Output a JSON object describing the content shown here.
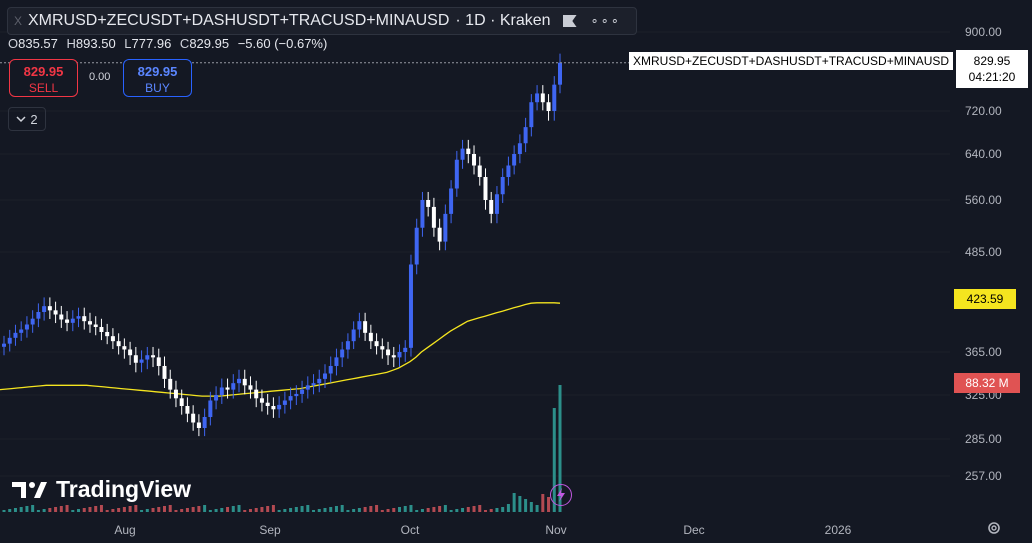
{
  "header": {
    "close_glyph": "X",
    "symbol": "XMRUSD+ZECUSDT+DASHUSDT+TRACUSD+MINAUSD",
    "interval_exchange": "· 1D · Kraken",
    "more_glyph": "∘∘∘"
  },
  "ohlc": {
    "o_label": "O",
    "o": "835.57",
    "h_label": "H",
    "h": "893.50",
    "l_label": "L",
    "l": "777.96",
    "c_label": "C",
    "c": "829.95",
    "change": "−5.60 (−0.67%)"
  },
  "trade": {
    "sell_price": "829.95",
    "sell_label": "SELL",
    "spread": "0.00",
    "buy_price": "829.95",
    "buy_label": "BUY"
  },
  "indicators": {
    "collapse_count": "2"
  },
  "price_axis": {
    "ticks": [
      "900.00",
      "720.00",
      "640.00",
      "560.00",
      "485.00",
      "365.00",
      "325.00",
      "285.00",
      "257.00"
    ]
  },
  "time_axis": {
    "ticks": [
      "Aug",
      "Sep",
      "Oct",
      "Nov",
      "Dec",
      "2026"
    ]
  },
  "last_price": {
    "symbol_label": "XMRUSD+ZECUSDT+DASHUSDT+TRACUSD+MINAUSD",
    "price": "829.95",
    "countdown": "04:21:20"
  },
  "ma_label": "423.59",
  "volume_label": "88.32 M",
  "brand": {
    "name": "TradingView"
  },
  "colors": {
    "background": "#141823",
    "up": "#3f66f2",
    "down": "#ffffff",
    "ma": "#f5e51f",
    "volume_up": "#2c8f8a",
    "volume_down": "#b34a52"
  },
  "chart_data": {
    "type": "candlestick",
    "x_axis": [
      "Aug",
      "Sep",
      "Oct",
      "Nov",
      "Dec",
      "2026"
    ],
    "y_axis_ticks": [
      900,
      720,
      640,
      560,
      485,
      365,
      325,
      285,
      257
    ],
    "y_scale": "log",
    "ylim": [
      250,
      960
    ],
    "closes": [
      375,
      382,
      388,
      392,
      398,
      405,
      413,
      420,
      415,
      410,
      404,
      400,
      405,
      408,
      402,
      398,
      395,
      389,
      384,
      378,
      372,
      368,
      362,
      355,
      358,
      362,
      360,
      352,
      340,
      330,
      322,
      315,
      308,
      300,
      295,
      305,
      320,
      325,
      332,
      330,
      336,
      340,
      334,
      330,
      322,
      318,
      315,
      312,
      316,
      320,
      324,
      326,
      330,
      334,
      336,
      340,
      345,
      352,
      360,
      368,
      378,
      392,
      402,
      388,
      378,
      372,
      368,
      362,
      360,
      365,
      370,
      470,
      520,
      560,
      550,
      520,
      500,
      540,
      580,
      630,
      650,
      640,
      620,
      600,
      560,
      540,
      570,
      600,
      620,
      640,
      660,
      690,
      740,
      760,
      740,
      720,
      780,
      829.95
    ],
    "ma": [
      330,
      330.5,
      331,
      331.5,
      332,
      332.5,
      333,
      333.5,
      334,
      334,
      334,
      334,
      334,
      334,
      334,
      334,
      333.5,
      333,
      332.5,
      332,
      331.5,
      331,
      330.5,
      330,
      329.5,
      329,
      328.5,
      328,
      327.5,
      327,
      326.5,
      326,
      325.5,
      325,
      324.5,
      324,
      324,
      324,
      324,
      324.5,
      325,
      325.5,
      326,
      326.5,
      327,
      327.5,
      328,
      328.5,
      329,
      329.5,
      330,
      330.5,
      331,
      332,
      333,
      334,
      335,
      336,
      337,
      338,
      339,
      340,
      341,
      342,
      343,
      344,
      345,
      346,
      348,
      350,
      353,
      356,
      360,
      365,
      370,
      375,
      380,
      385,
      390,
      394,
      398,
      402,
      404,
      406,
      408,
      410,
      412,
      414,
      416,
      418,
      420,
      422,
      423.59,
      424,
      424,
      424,
      424,
      423.59
    ],
    "last": 829.95,
    "ma_last": 423.59,
    "volume_last": "88.32 M"
  }
}
